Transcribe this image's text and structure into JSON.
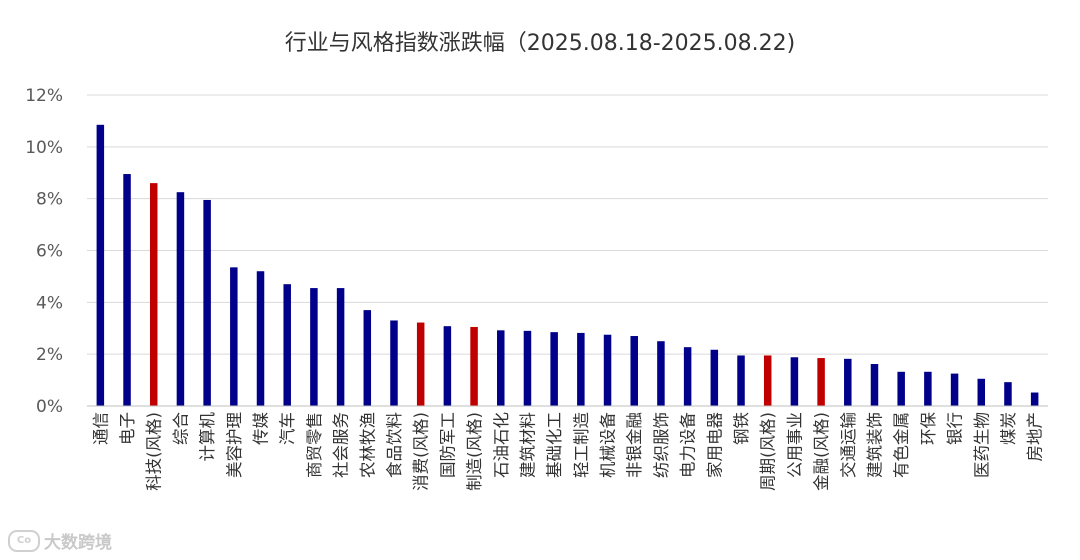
{
  "chart_data": {
    "type": "bar",
    "title": "行业与风格指数涨跌幅（2025.08.18-2025.08.22)",
    "ylim": [
      0,
      12
    ],
    "yticks": [
      "0%",
      "2%",
      "4%",
      "6%",
      "8%",
      "10%",
      "12%"
    ],
    "grid": true,
    "legend": "none",
    "colors": {
      "industry": "#00008B",
      "style": "#C00000"
    },
    "categories": [
      "通信",
      "电子",
      "科技(风格)",
      "综合",
      "计算机",
      "美容护理",
      "传媒",
      "汽车",
      "商贸零售",
      "社会服务",
      "农林牧渔",
      "食品饮料",
      "消费(风格)",
      "国防军工",
      "制造(风格)",
      "石油石化",
      "建筑材料",
      "基础化工",
      "轻工制造",
      "机械设备",
      "非银金融",
      "纺织服饰",
      "电力设备",
      "家用电器",
      "钢铁",
      "周期(风格)",
      "公用事业",
      "金融(风格)",
      "交通运输",
      "建筑装饰",
      "有色金属",
      "环保",
      "银行",
      "医药生物",
      "煤炭",
      "房地产"
    ],
    "values": [
      10.85,
      8.95,
      8.6,
      8.25,
      7.95,
      5.35,
      5.2,
      4.7,
      4.55,
      4.55,
      3.7,
      3.3,
      3.22,
      3.08,
      3.05,
      2.92,
      2.9,
      2.85,
      2.82,
      2.75,
      2.7,
      2.5,
      2.27,
      2.17,
      1.95,
      1.95,
      1.88,
      1.85,
      1.82,
      1.62,
      1.32,
      1.32,
      1.25,
      1.05,
      0.92,
      0.52
    ],
    "is_style": [
      false,
      false,
      true,
      false,
      false,
      false,
      false,
      false,
      false,
      false,
      false,
      false,
      true,
      false,
      true,
      false,
      false,
      false,
      false,
      false,
      false,
      false,
      false,
      false,
      false,
      true,
      false,
      true,
      false,
      false,
      false,
      false,
      false,
      false,
      false,
      false
    ]
  },
  "watermark": {
    "logo": "Co",
    "text": "大数跨境"
  }
}
